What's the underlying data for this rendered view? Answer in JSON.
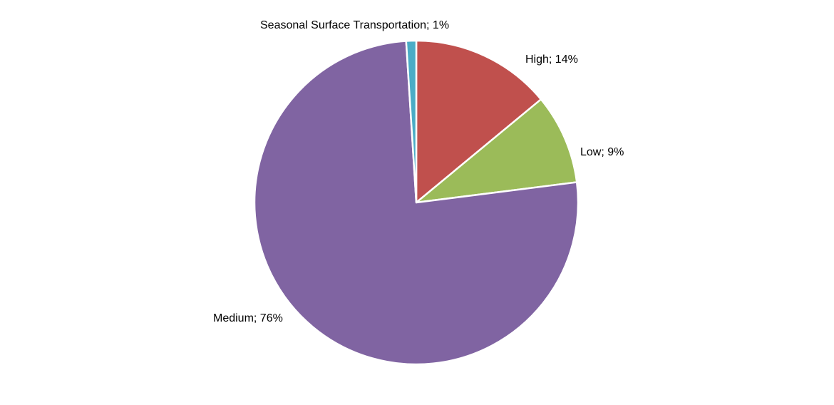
{
  "chart_data": {
    "type": "pie",
    "categories": [
      "High",
      "Low",
      "Medium",
      "Seasonal Surface Transportation"
    ],
    "values": [
      14,
      9,
      76,
      1
    ],
    "unit": "percent",
    "total": 100,
    "data_labels": [
      "High; 14%",
      "Low; 9%",
      "Medium; 76%",
      "Seasonal Surface Transportation; 1%"
    ],
    "colors": [
      "#C0504D",
      "#9BBB59",
      "#8064A2",
      "#4BACC6"
    ],
    "slice_border_color": "#FFFFFF",
    "background_color": "#FFFFFF",
    "label_text_color": "#000000",
    "title": "",
    "legend": "none",
    "start_angle_deg": 0,
    "direction": "clockwise"
  }
}
